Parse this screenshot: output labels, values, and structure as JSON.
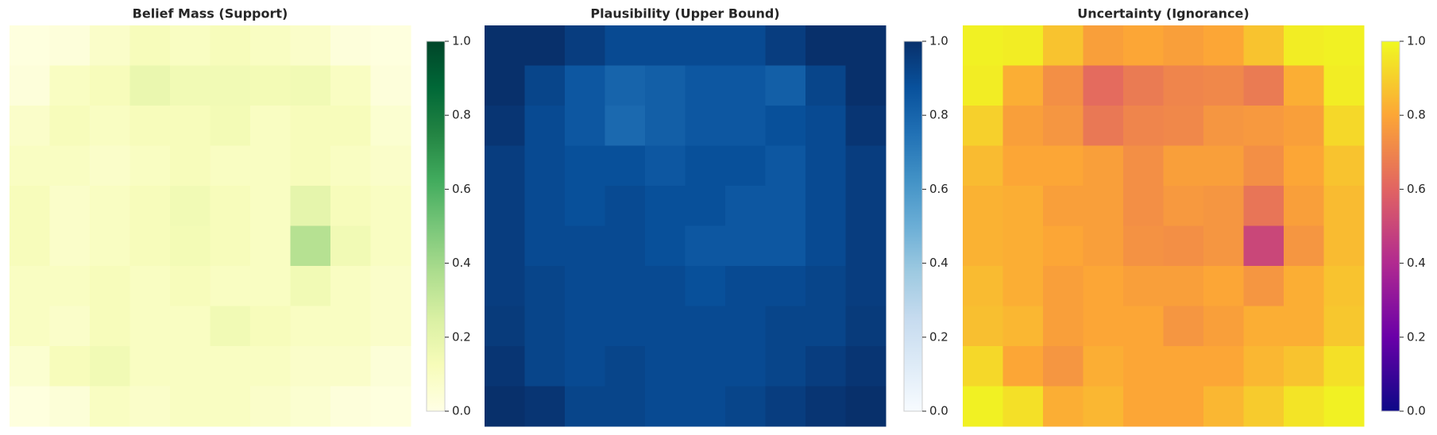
{
  "chart_data": [
    {
      "type": "heatmap",
      "title": "Belief Mass (Support)",
      "colormap": [
        "#ffffe5",
        "#f7fcb9",
        "#d9f0a3",
        "#addd8e",
        "#78c679",
        "#41ab5d",
        "#238443",
        "#006837",
        "#004529"
      ],
      "zlim": [
        0,
        1
      ],
      "zticks": [
        {
          "value": 0,
          "label": "0.0"
        },
        0.2,
        0.4,
        0.6,
        0.8,
        {
          "value": 1,
          "label": "1.0"
        }
      ],
      "z": [
        [
          0.02,
          0.03,
          0.08,
          0.12,
          0.1,
          0.12,
          0.1,
          0.08,
          0.03,
          0.02
        ],
        [
          0.03,
          0.1,
          0.12,
          0.18,
          0.15,
          0.15,
          0.14,
          0.15,
          0.1,
          0.03
        ],
        [
          0.08,
          0.12,
          0.1,
          0.12,
          0.12,
          0.14,
          0.1,
          0.12,
          0.12,
          0.06
        ],
        [
          0.1,
          0.1,
          0.08,
          0.1,
          0.12,
          0.1,
          0.1,
          0.12,
          0.1,
          0.08
        ],
        [
          0.12,
          0.08,
          0.1,
          0.12,
          0.15,
          0.12,
          0.1,
          0.2,
          0.12,
          0.1
        ],
        [
          0.12,
          0.08,
          0.1,
          0.12,
          0.14,
          0.12,
          0.1,
          0.35,
          0.15,
          0.1
        ],
        [
          0.1,
          0.1,
          0.12,
          0.1,
          0.12,
          0.1,
          0.1,
          0.15,
          0.1,
          0.08
        ],
        [
          0.1,
          0.08,
          0.12,
          0.1,
          0.1,
          0.15,
          0.12,
          0.1,
          0.1,
          0.08
        ],
        [
          0.06,
          0.12,
          0.15,
          0.1,
          0.1,
          0.1,
          0.1,
          0.08,
          0.08,
          0.04
        ],
        [
          0.02,
          0.04,
          0.1,
          0.08,
          0.1,
          0.1,
          0.08,
          0.06,
          0.03,
          0.02
        ]
      ]
    },
    {
      "type": "heatmap",
      "title": "Plausibility (Upper Bound)",
      "colormap": [
        "#f7fbff",
        "#deebf7",
        "#c6dbef",
        "#9ecae1",
        "#6baed6",
        "#4292c6",
        "#2171b5",
        "#08519c",
        "#08306b"
      ],
      "zlim": [
        0,
        1
      ],
      "zticks": [
        {
          "value": 0,
          "label": "0.0"
        },
        0.2,
        0.4,
        0.6,
        0.8,
        {
          "value": 1,
          "label": "1.0"
        }
      ],
      "z": [
        [
          1,
          1,
          0.95,
          0.9,
          0.9,
          0.9,
          0.9,
          0.95,
          1,
          1
        ],
        [
          1,
          0.92,
          0.85,
          0.8,
          0.82,
          0.85,
          0.85,
          0.82,
          0.92,
          1
        ],
        [
          0.98,
          0.9,
          0.85,
          0.78,
          0.82,
          0.85,
          0.85,
          0.88,
          0.9,
          0.98
        ],
        [
          0.95,
          0.9,
          0.88,
          0.88,
          0.85,
          0.88,
          0.88,
          0.85,
          0.9,
          0.95
        ],
        [
          0.95,
          0.9,
          0.88,
          0.9,
          0.88,
          0.88,
          0.85,
          0.85,
          0.9,
          0.95
        ],
        [
          0.95,
          0.9,
          0.9,
          0.9,
          0.88,
          0.85,
          0.85,
          0.85,
          0.9,
          0.95
        ],
        [
          0.95,
          0.92,
          0.9,
          0.9,
          0.9,
          0.88,
          0.9,
          0.9,
          0.92,
          0.95
        ],
        [
          0.96,
          0.92,
          0.9,
          0.9,
          0.9,
          0.9,
          0.9,
          0.92,
          0.92,
          0.96
        ],
        [
          0.98,
          0.92,
          0.9,
          0.92,
          0.9,
          0.9,
          0.9,
          0.92,
          0.95,
          0.98
        ],
        [
          1,
          0.98,
          0.92,
          0.92,
          0.9,
          0.9,
          0.92,
          0.95,
          0.98,
          1
        ]
      ]
    },
    {
      "type": "heatmap",
      "title": "Uncertainty (Ignorance)",
      "colormap": [
        "#0d0887",
        "#6a00a8",
        "#b12a90",
        "#e16462",
        "#fca636",
        "#f0f921"
      ],
      "zlim": [
        0,
        1
      ],
      "zticks": [
        {
          "value": 0,
          "label": "0.0"
        },
        0.2,
        0.4,
        0.6,
        0.8,
        {
          "value": 1,
          "label": "1.0"
        }
      ],
      "z": [
        [
          0.98,
          0.97,
          0.87,
          0.78,
          0.8,
          0.78,
          0.8,
          0.87,
          0.97,
          0.98
        ],
        [
          0.97,
          0.82,
          0.73,
          0.62,
          0.67,
          0.7,
          0.71,
          0.67,
          0.82,
          0.97
        ],
        [
          0.9,
          0.78,
          0.75,
          0.66,
          0.7,
          0.71,
          0.75,
          0.76,
          0.78,
          0.92
        ],
        [
          0.85,
          0.8,
          0.8,
          0.78,
          0.73,
          0.78,
          0.78,
          0.73,
          0.8,
          0.87
        ],
        [
          0.83,
          0.82,
          0.78,
          0.78,
          0.73,
          0.76,
          0.75,
          0.65,
          0.78,
          0.85
        ],
        [
          0.83,
          0.82,
          0.8,
          0.78,
          0.74,
          0.73,
          0.75,
          0.5,
          0.75,
          0.85
        ],
        [
          0.85,
          0.82,
          0.78,
          0.8,
          0.78,
          0.78,
          0.8,
          0.75,
          0.82,
          0.87
        ],
        [
          0.86,
          0.84,
          0.78,
          0.8,
          0.8,
          0.75,
          0.78,
          0.82,
          0.82,
          0.88
        ],
        [
          0.92,
          0.8,
          0.75,
          0.82,
          0.8,
          0.8,
          0.8,
          0.84,
          0.87,
          0.94
        ],
        [
          0.98,
          0.94,
          0.82,
          0.84,
          0.8,
          0.8,
          0.84,
          0.89,
          0.95,
          0.98
        ]
      ]
    }
  ]
}
